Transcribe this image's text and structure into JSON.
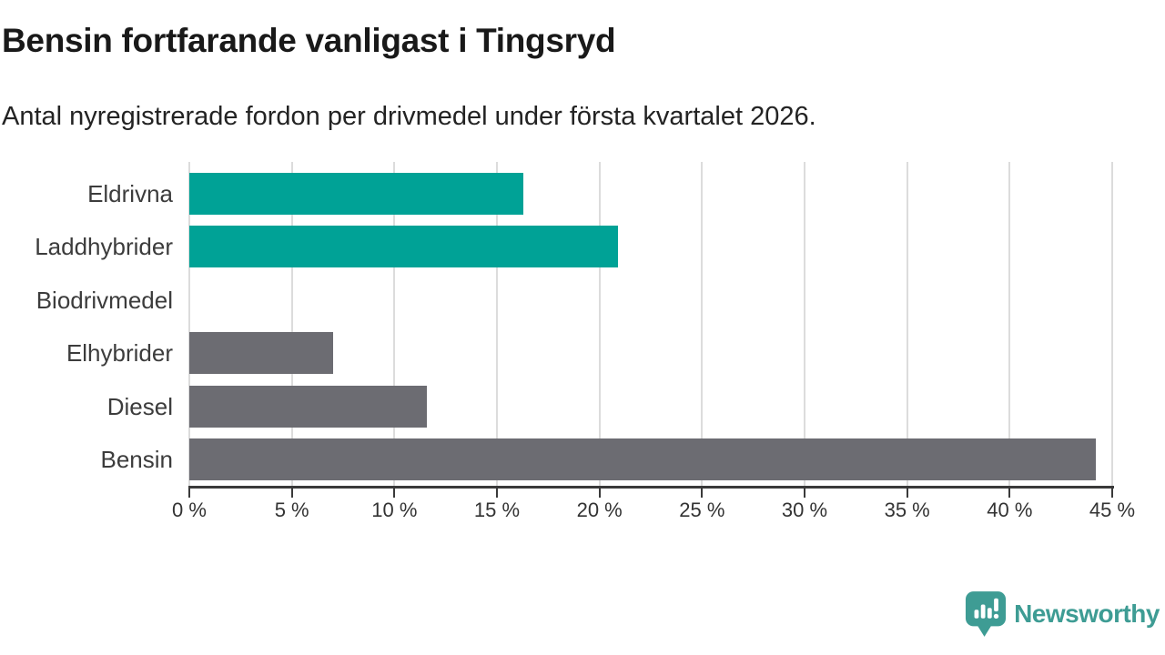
{
  "header": {
    "title": "Bensin fortfarande vanligast i Tingsryd",
    "subtitle": "Antal nyregistrerade fordon per drivmedel under första kvartalet 2026."
  },
  "chart_data": {
    "type": "bar",
    "orientation": "horizontal",
    "title": "Bensin fortfarande vanligast i Tingsryd",
    "subtitle": "Antal nyregistrerade fordon per drivmedel under första kvartalet 2026.",
    "categories": [
      "Eldrivna",
      "Laddhybrider",
      "Biodrivmedel",
      "Elhybrider",
      "Diesel",
      "Bensin"
    ],
    "values": [
      16.3,
      20.9,
      0,
      7.0,
      11.6,
      44.2
    ],
    "unit": "%",
    "xlabel": "",
    "ylabel": "",
    "xlim": [
      0,
      45
    ],
    "xticks": [
      0,
      5,
      10,
      15,
      20,
      25,
      30,
      35,
      40,
      45
    ],
    "xtick_suffix": " %",
    "grid": true,
    "legend": "none",
    "colors": {
      "highlight": "#00a296",
      "default": "#6c6c72",
      "gridline": "#dcdcdc",
      "axis": "#3a3a3a"
    },
    "bar_colors": [
      "#00a296",
      "#00a296",
      "#6c6c72",
      "#6c6c72",
      "#6c6c72",
      "#6c6c72"
    ]
  },
  "footer": {
    "logo_text": "Newsworthy",
    "logo_color": "#3e9c94",
    "logo_icon": "bar-chart-speech-bubble-icon"
  }
}
